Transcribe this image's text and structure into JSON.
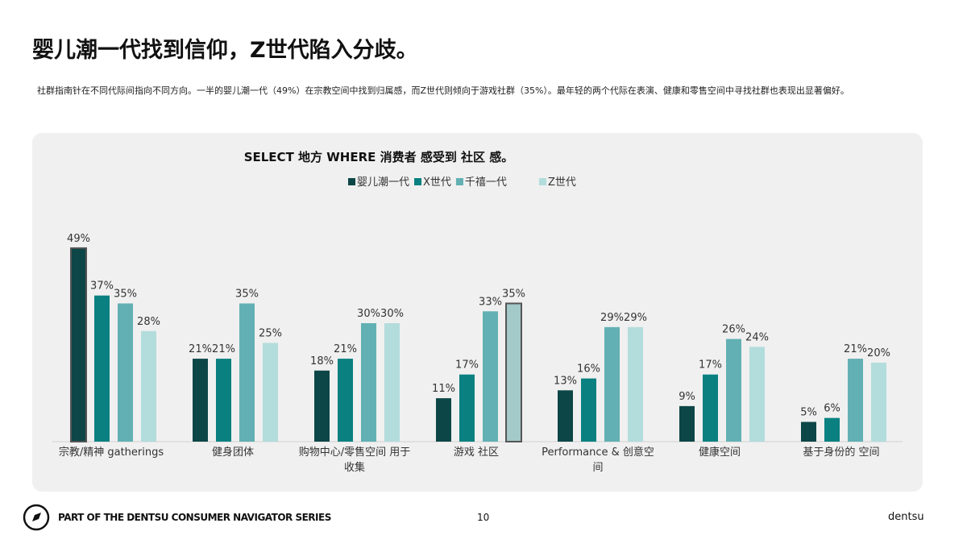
{
  "header": {
    "title": "婴儿潮一代找到信仰，Z世代陷入分歧。",
    "subtitle": "社群指南针在不同代际间指向不同方向。一半的婴儿潮一代（49%）在宗教空间中找到归属感，而Z世代则倾向于游戏社群（35%）。最年轻的两个代际在表演、健康和零售空间中寻找社群也表现出显著偏好。"
  },
  "chart_data": {
    "type": "bar",
    "title": "SELECT 地方 WHERE 消费者 感受到 社区 感。",
    "categories": [
      "宗教/精神 gatherings",
      "健身团体",
      "购物中心/零售空间 用于收集",
      "游戏 社区",
      "Performance & 创意空间",
      "健康空间",
      "基于身份的 空间"
    ],
    "series": [
      {
        "name": "婴儿潮一代",
        "color": "#0d4647",
        "values": [
          49,
          21,
          18,
          11,
          13,
          9,
          5
        ],
        "value_labels": [
          "49%",
          "21%",
          "18%",
          "11%",
          "13%",
          "9%",
          "5%"
        ]
      },
      {
        "name": "X世代",
        "color": "#0a8080",
        "values": [
          37,
          21,
          21,
          17,
          16,
          17,
          6
        ],
        "value_labels": [
          "37%",
          "21%",
          "21%",
          "17%",
          "16%",
          "17%",
          "6%"
        ]
      },
      {
        "name": "千禧一代",
        "color": "#62b0b3",
        "values": [
          35,
          35,
          30,
          33,
          29,
          26,
          21
        ],
        "value_labels": [
          "35%",
          "35%",
          "30%",
          "33%",
          "29%",
          "26%",
          "21%"
        ]
      },
      {
        "name": "Z世代",
        "color": "#b3dcdc",
        "values": [
          28,
          25,
          30,
          35,
          29,
          24,
          20
        ],
        "value_labels": [
          "28%",
          "25%",
          "30%",
          "35%",
          "29%",
          "24%",
          "20%"
        ]
      }
    ],
    "highlighted": [
      {
        "series": 0,
        "category": 0
      },
      {
        "series": 3,
        "category": 3,
        "color": "#a3c9c9"
      }
    ]
  },
  "footer": {
    "series_label": "PART OF THE DENTSU CONSUMER NAVIGATOR SERIES",
    "page": "10",
    "brand": "dentsu"
  }
}
